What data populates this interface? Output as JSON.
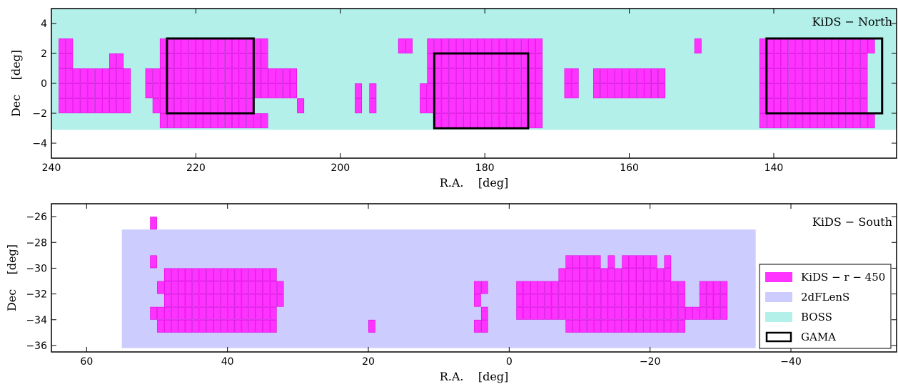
{
  "colors": {
    "kids": "#ff33ff",
    "kids_edge": "#dd00dd",
    "twodflens": "#ccccff",
    "boss": "#b3f0e9",
    "gama": "#000000"
  },
  "chart_data": [
    {
      "type": "scatter",
      "title": "KiDS − North",
      "xlabel": "R.A.    [deg]",
      "ylabel": "Dec    [deg]",
      "xlim": [
        240,
        123
      ],
      "ylim": [
        -5,
        5
      ],
      "xticks": [
        240,
        220,
        200,
        180,
        160,
        140
      ],
      "xtick_labels": [
        "240",
        "220",
        "200",
        "180",
        "160",
        "140"
      ],
      "yticks": [
        4,
        2,
        0,
        -2,
        -4
      ],
      "ytick_labels": [
        "4",
        "2",
        "0",
        "−2",
        "−4"
      ],
      "regions": [
        {
          "name": "BOSS",
          "kind": "filled",
          "x": [
            240,
            123
          ],
          "y": [
            -3.1,
            5
          ]
        }
      ],
      "gama_boxes": [
        {
          "x": [
            224,
            212
          ],
          "y": [
            -2,
            3
          ]
        },
        {
          "x": [
            187,
            174
          ],
          "y": [
            -3,
            2
          ]
        },
        {
          "x": [
            141,
            125
          ],
          "y": [
            -2,
            3
          ]
        }
      ],
      "tile_rows": [
        {
          "dec": 2.5,
          "ranges": [
            [
              239,
              237
            ],
            [
              225,
              210
            ],
            [
              190,
              192
            ],
            [
              188,
              172
            ],
            [
              151,
              150
            ],
            [
              142,
              126
            ]
          ]
        },
        {
          "dec": 1.5,
          "ranges": [
            [
              239,
              237
            ],
            [
              232,
              230
            ],
            [
              225,
              210
            ],
            [
              188,
              172
            ],
            [
              142,
              127
            ]
          ]
        },
        {
          "dec": 0.5,
          "ranges": [
            [
              239,
              229
            ],
            [
              227,
              206
            ],
            [
              188,
              172
            ],
            [
              169,
              167
            ],
            [
              165,
              155
            ],
            [
              142,
              127
            ]
          ]
        },
        {
          "dec": -0.5,
          "ranges": [
            [
              239,
              229
            ],
            [
              227,
              206
            ],
            [
              198,
              197
            ],
            [
              196,
              195
            ],
            [
              189,
              172
            ],
            [
              169,
              167
            ],
            [
              165,
              155
            ],
            [
              142,
              127
            ]
          ]
        },
        {
          "dec": -1.5,
          "ranges": [
            [
              239,
              229
            ],
            [
              226,
              212
            ],
            [
              206,
              205
            ],
            [
              198,
              197
            ],
            [
              196,
              195
            ],
            [
              189,
              172
            ],
            [
              142,
              127
            ]
          ]
        },
        {
          "dec": -2.5,
          "ranges": [
            [
              225,
              210
            ],
            [
              187,
              172
            ],
            [
              142,
              126
            ]
          ]
        }
      ]
    },
    {
      "type": "scatter",
      "title": "KiDS − South",
      "xlabel": "R.A.    [deg]",
      "ylabel": "Dec    [deg]",
      "xlim": [
        65,
        -55
      ],
      "ylim": [
        -36.5,
        -25
      ],
      "xticks": [
        60,
        40,
        20,
        0,
        -20,
        -40
      ],
      "xtick_labels": [
        "60",
        "40",
        "20",
        "0",
        "−20",
        "−40"
      ],
      "yticks": [
        -26,
        -28,
        -30,
        -32,
        -34,
        -36
      ],
      "ytick_labels": [
        "−26",
        "−28",
        "−30",
        "−32",
        "−34",
        "−36"
      ],
      "regions": [
        {
          "name": "2dFLenS",
          "kind": "filled",
          "x": [
            55,
            -35
          ],
          "y": [
            -36.2,
            -27
          ]
        }
      ],
      "tile_rows": [
        {
          "dec": -26.5,
          "ranges": [
            [
              51,
              50
            ]
          ]
        },
        {
          "dec": -29.5,
          "ranges": [
            [
              51,
              50
            ],
            [
              -8,
              -13
            ],
            [
              -14,
              -15
            ],
            [
              -16,
              -21
            ],
            [
              -22,
              -23
            ]
          ]
        },
        {
          "dec": -30.5,
          "ranges": [
            [
              49,
              33
            ],
            [
              -7,
              -23
            ]
          ]
        },
        {
          "dec": -31.5,
          "ranges": [
            [
              50,
              32
            ],
            [
              5,
              3
            ],
            [
              -1,
              -25
            ],
            [
              -27,
              -31
            ]
          ]
        },
        {
          "dec": -32.5,
          "ranges": [
            [
              49,
              32
            ],
            [
              5,
              4
            ],
            [
              -1,
              -25
            ],
            [
              -27,
              -31
            ]
          ]
        },
        {
          "dec": -33.5,
          "ranges": [
            [
              51,
              33
            ],
            [
              4,
              3
            ],
            [
              -1,
              -31
            ]
          ]
        },
        {
          "dec": -34.5,
          "ranges": [
            [
              50,
              33
            ],
            [
              20,
              19
            ],
            [
              5,
              3
            ],
            [
              -8,
              -25
            ]
          ]
        }
      ],
      "legend": {
        "placement": "right",
        "entries": [
          "KiDS − r − 450",
          "2dFLenS",
          "BOSS",
          "GAMA"
        ]
      }
    }
  ]
}
